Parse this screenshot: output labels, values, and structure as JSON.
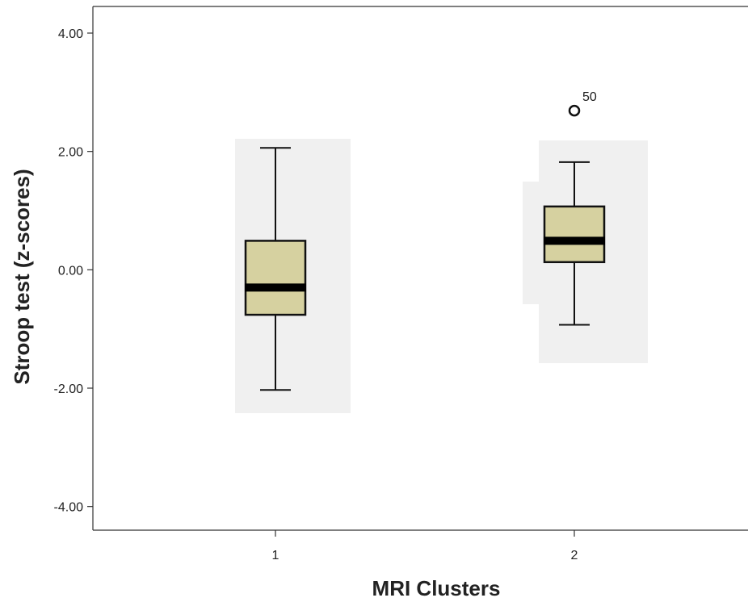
{
  "chart_data": {
    "type": "boxplot",
    "title": "",
    "xlabel": "MRI Clusters",
    "ylabel": "Stroop test (z-scores)",
    "ylim": [
      -4.4,
      4.45
    ],
    "yticks": [
      4.0,
      2.0,
      0.0,
      -2.0,
      -4.0
    ],
    "ytick_labels": [
      "4.00",
      "2.00",
      "0.00",
      "-2.00",
      "-4.00"
    ],
    "categories": [
      "1",
      "2"
    ],
    "boxes": [
      {
        "category": "1",
        "whisker_low": -2.03,
        "q1": -0.76,
        "median": -0.3,
        "q3": 0.49,
        "whisker_high": 2.06,
        "outliers": []
      },
      {
        "category": "2",
        "whisker_low": -0.93,
        "q1": 0.13,
        "median": 0.49,
        "q3": 1.07,
        "whisker_high": 1.82,
        "outliers": [
          {
            "value": 2.69,
            "label": "50"
          }
        ]
      }
    ],
    "colors": {
      "box_fill": "#d6d1a0",
      "box_stroke": "#111111",
      "background_shading": "#f0f0f0",
      "axis": "#333333"
    }
  }
}
